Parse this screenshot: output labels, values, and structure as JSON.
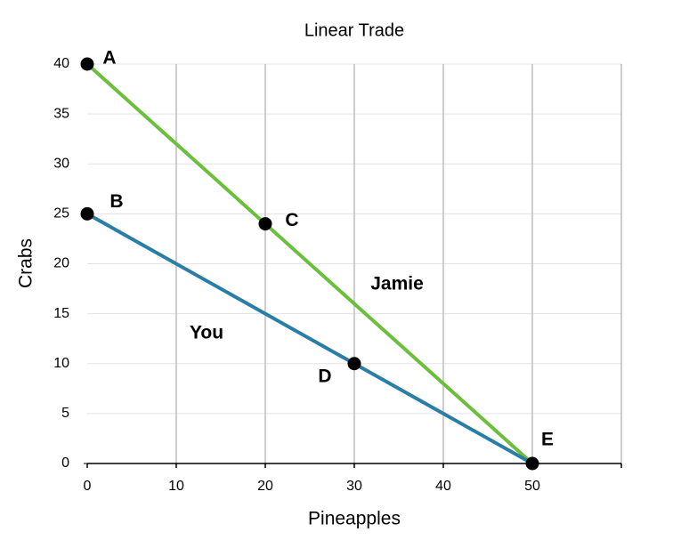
{
  "chart_data": {
    "type": "line",
    "title": "Linear Trade",
    "x_label": "Pineapples",
    "y_label": "Crabs",
    "xlim": [
      0,
      60
    ],
    "ylim": [
      0,
      40
    ],
    "xticks": [
      0,
      10,
      20,
      30,
      40,
      50
    ],
    "yticks": [
      0,
      5,
      10,
      15,
      20,
      25,
      30,
      35,
      40
    ],
    "grid": true,
    "series": [
      {
        "name": "Jamie",
        "color": "#6cbf3c",
        "x": [
          0,
          20,
          50
        ],
        "values": [
          40,
          24,
          0
        ]
      },
      {
        "name": "You",
        "color": "#2a7ea6",
        "x": [
          0,
          30,
          50
        ],
        "values": [
          25,
          10,
          0
        ]
      }
    ],
    "points": [
      {
        "label": "A",
        "x": 0,
        "y": 40
      },
      {
        "label": "B",
        "x": 0,
        "y": 25
      },
      {
        "label": "C",
        "x": 20,
        "y": 24
      },
      {
        "label": "D",
        "x": 30,
        "y": 10
      },
      {
        "label": "E",
        "x": 50,
        "y": 0
      }
    ],
    "point_color": "#000000"
  }
}
